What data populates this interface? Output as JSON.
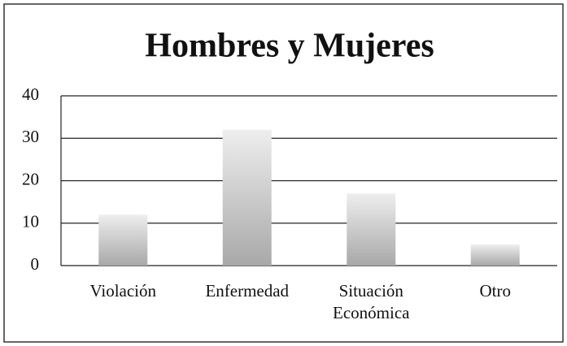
{
  "chart_data": {
    "type": "bar",
    "title": "Hombres y Mujeres",
    "categories": [
      "Violación",
      "Enfermedad",
      "Situación Económica",
      "Otro"
    ],
    "values": [
      12,
      32,
      17,
      5
    ],
    "color": "#a8a8a8",
    "ylim": [
      0,
      40
    ],
    "yticks": [
      0,
      10,
      20,
      30,
      40
    ],
    "grid": true
  }
}
